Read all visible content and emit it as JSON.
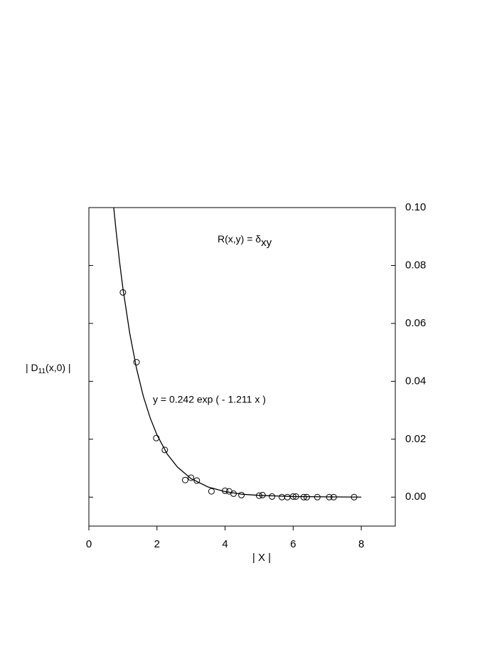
{
  "chart_data": {
    "type": "scatter",
    "x_label": "| X |",
    "y_label": [
      "| D",
      "11",
      "(x,0) |"
    ],
    "annotations": [
      [
        "R(x,y) = δ",
        "xy"
      ],
      "y = 0.242 exp ( - 1.211 x )"
    ],
    "x": [
      1.0,
      1.4,
      1.98,
      2.23,
      2.83,
      3.0,
      3.17,
      3.6,
      4.0,
      4.12,
      4.25,
      4.48,
      5.0,
      5.1,
      5.38,
      5.67,
      5.83,
      6.0,
      6.08,
      6.31,
      6.4,
      6.71,
      7.06,
      7.19,
      7.79
    ],
    "values": [
      0.0707,
      0.0466,
      0.0204,
      0.0163,
      0.0059,
      0.0067,
      0.0057,
      0.002,
      0.0022,
      0.002,
      0.0012,
      0.0007,
      0.0005,
      0.0007,
      0.0002,
      0,
      0,
      0.0002,
      0.0002,
      0,
      0,
      0,
      0,
      0,
      0
    ],
    "color": "#000000",
    "fit": {
      "x": [
        0.73,
        0.8,
        0.9,
        1.0,
        1.2,
        1.4,
        1.6,
        1.8,
        2.0,
        2.3,
        2.6,
        3.0,
        3.5,
        4.0,
        4.5,
        5.0,
        6.0,
        7.0,
        8.0
      ],
      "values": [
        0.1,
        0.0919,
        0.0814,
        0.0721,
        0.0566,
        0.0444,
        0.0348,
        0.0274,
        0.0215,
        0.0149,
        0.0104,
        0.0064,
        0.0035,
        0.0019,
        0.001,
        0.0006,
        0.0002,
        0.0001,
        0
      ]
    },
    "xlim": [
      0,
      9
    ],
    "xticks": [
      0,
      2,
      4,
      6,
      8
    ],
    "ylim": [
      -0.01,
      0.1
    ],
    "yticks": [
      {
        "value": 0,
        "label": "0.00"
      },
      0.02,
      0.04,
      0.06,
      0.08,
      {
        "value": 0.1,
        "label": "0.10"
      }
    ],
    "y_axis_side": "right",
    "grid": false
  }
}
